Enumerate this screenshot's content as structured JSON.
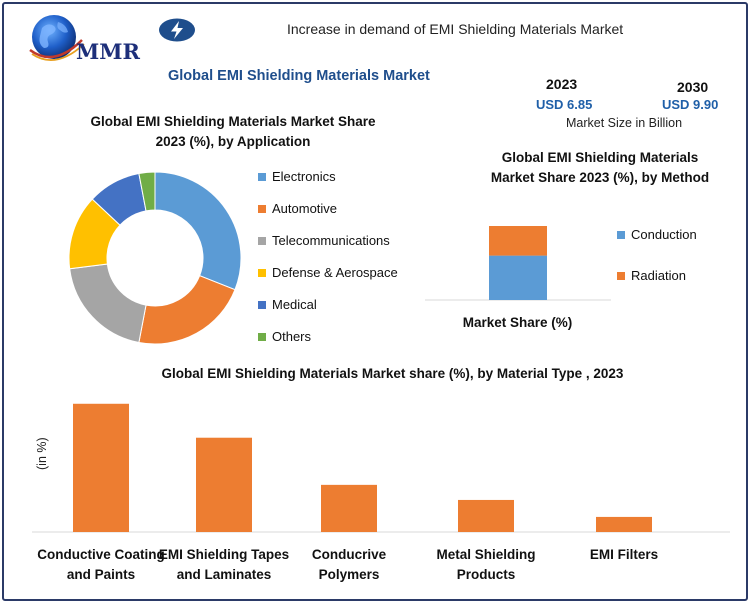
{
  "header": {
    "logo_text": "MMR",
    "title": "Increase in demand of EMI Shielding Materials Market"
  },
  "main_title": "Global EMI Shielding Materials Market",
  "market_size": {
    "year_2023": "2023",
    "value_2023": "USD 6.85",
    "year_2030": "2030",
    "value_2030": "USD 9.90",
    "caption": "Market Size in Billion"
  },
  "colors": {
    "blue": "#5b9bd5",
    "orange": "#ed7d31",
    "gray": "#a5a5a5",
    "yellow": "#ffc000",
    "dark_blue": "#4472c4",
    "green": "#70ad47",
    "frame": "#2b3a67"
  },
  "chart_data": [
    {
      "type": "pie",
      "title_line1": "Global EMI Shielding Materials Market Share",
      "title_line2": "2023 (%), by Application",
      "labels": [
        "Electronics",
        "Automotive",
        "Telecommunications",
        "Defense & Aerospace",
        "Medical",
        "Others"
      ],
      "values": [
        31,
        22,
        20,
        14,
        10,
        3
      ],
      "colors": [
        "#5b9bd5",
        "#ed7d31",
        "#a5a5a5",
        "#ffc000",
        "#4472c4",
        "#70ad47"
      ],
      "donut": true,
      "legend_position": "right"
    },
    {
      "type": "bar",
      "stacked": true,
      "title_line1": "Global EMI Shielding Materials",
      "title_line2": "Market Share 2023 (%), by  Method",
      "xlabel": "Market Share (%)",
      "series": [
        {
          "name": "Conduction",
          "values": [
            60
          ],
          "color": "#5b9bd5"
        },
        {
          "name": "Radiation",
          "values": [
            40
          ],
          "color": "#ed7d31"
        }
      ],
      "legend_position": "right"
    },
    {
      "type": "bar",
      "title": "Global EMI Shielding Materials Market share (%), by Material Type , 2023",
      "ylabel": "(in %)",
      "categories": [
        [
          "Conductive Coating",
          "and Paints"
        ],
        [
          "EMI Shielding Tapes",
          "and Laminates"
        ],
        [
          "Conducrive",
          "Polymers"
        ],
        [
          "Metal Shielding",
          "Products"
        ],
        [
          "EMI Filters"
        ]
      ],
      "values": [
        34,
        25,
        12.5,
        8.5,
        4
      ],
      "ylim": [
        0,
        35
      ],
      "color": "#ed7d31",
      "grid": false
    }
  ]
}
